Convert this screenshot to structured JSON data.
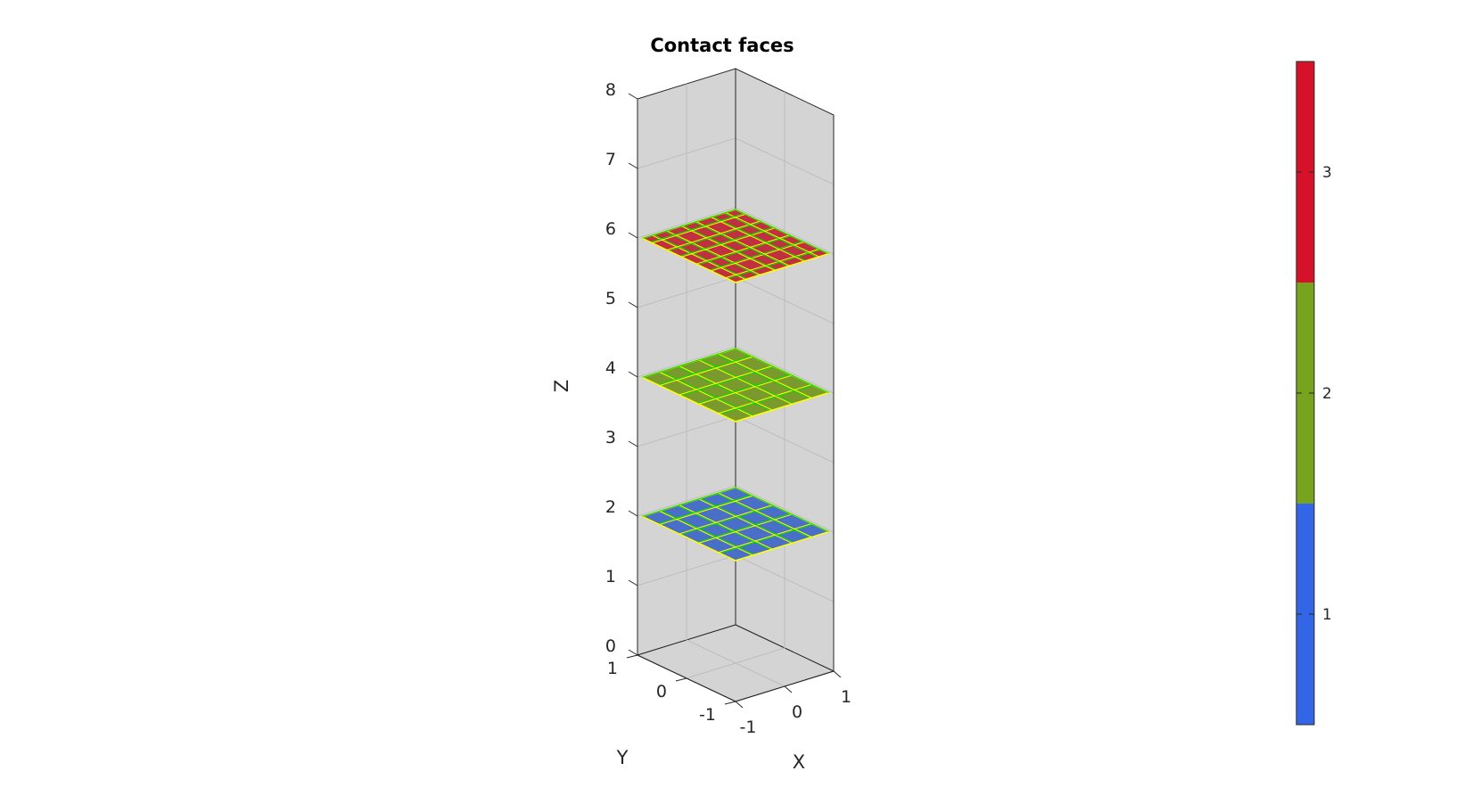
{
  "chart_data": {
    "type": "surface3d",
    "title": "Contact faces",
    "xlabel": "X",
    "ylabel": "Y",
    "zlabel": "Z",
    "xlim": [
      -1,
      1
    ],
    "ylim": [
      -1,
      1
    ],
    "zlim": [
      0,
      8
    ],
    "xticks": [
      "-1",
      "0",
      "1"
    ],
    "yticks": [
      "-1",
      "0",
      "1"
    ],
    "zticks": [
      "0",
      "1",
      "2",
      "3",
      "4",
      "5",
      "6",
      "7",
      "8"
    ],
    "grid": true,
    "colors": {
      "1": "#4a6fc9",
      "2": "#7a9a2e",
      "3": "#c03040",
      "edge_yellow": "#ffff00",
      "edge_green": "#00dd00",
      "pane": "#d4d4d4"
    },
    "faces": [
      {
        "z": 2,
        "value": 1,
        "grid_lines": [
          -0.6,
          -0.2,
          0.2,
          0.6
        ]
      },
      {
        "z": 4,
        "value": 2,
        "grid_lines": [
          -0.6,
          -0.2,
          0.2,
          0.6
        ]
      },
      {
        "z": 6,
        "value": 3,
        "grid_lines": [
          -0.75,
          -0.45,
          -0.15,
          0.15,
          0.45,
          0.75
        ]
      }
    ],
    "colorbar": {
      "position": "right",
      "ticks": [
        "1",
        "2",
        "3"
      ],
      "segments": [
        {
          "value": 1,
          "color": "#3366e6"
        },
        {
          "value": 2,
          "color": "#77a31f"
        },
        {
          "value": 3,
          "color": "#d6112a"
        }
      ]
    }
  }
}
